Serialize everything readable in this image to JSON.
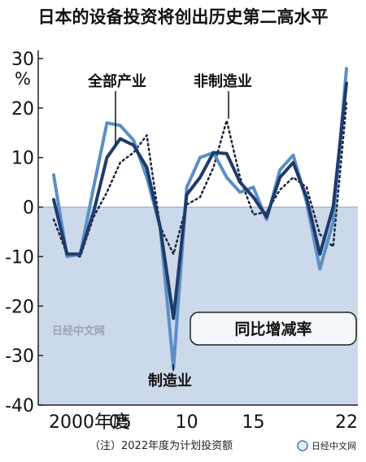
{
  "chart_data": {
    "type": "line",
    "title": "日本的设备投资将创出历史第二高水平",
    "unit_label": "%",
    "x": [
      2000,
      2001,
      2002,
      2003,
      2004,
      2005,
      2006,
      2007,
      2008,
      2009,
      2010,
      2011,
      2012,
      2013,
      2014,
      2015,
      2016,
      2017,
      2018,
      2019,
      2020,
      2021,
      2022
    ],
    "x_tick_labels": [
      "2000年度",
      "05",
      "10",
      "15",
      "22"
    ],
    "x_tick_values": [
      2000,
      2005,
      2010,
      2015,
      2022
    ],
    "y_tick_values": [
      30,
      20,
      10,
      0,
      -10,
      -20,
      -30,
      -40
    ],
    "y_tick_labels": [
      "30",
      "20",
      "10",
      "0",
      "-10",
      "-20",
      "-30",
      "-40"
    ],
    "ylim": [
      -40,
      30
    ],
    "xlim": [
      2000,
      2022
    ],
    "negative_region_shaded": true,
    "series": [
      {
        "name": "全部产业",
        "style": "solid-dark",
        "color": "#1f3a6b",
        "values": [
          1.5,
          -9.5,
          -9.5,
          -1,
          10,
          13.8,
          12.5,
          8,
          -4,
          -22.5,
          2.5,
          6,
          11,
          10.8,
          5,
          2,
          -2,
          6,
          9,
          2,
          -9.5,
          0,
          25
        ]
      },
      {
        "name": "制造业",
        "style": "solid-light",
        "color": "#5b8fc5",
        "values": [
          6.5,
          -10,
          -9.5,
          4,
          17,
          16.5,
          13.5,
          6,
          -4,
          -32.5,
          4,
          10,
          11,
          6,
          3,
          4,
          -2.5,
          7.5,
          10.5,
          1,
          -12.5,
          -3,
          28
        ]
      },
      {
        "name": "非制造业",
        "style": "dotted",
        "color": "#1a2540",
        "values": [
          -2.5,
          -9.5,
          -10,
          -2,
          3,
          9,
          11,
          14.5,
          -4,
          -9.5,
          0.5,
          2,
          8,
          17.5,
          6,
          -1.5,
          -1,
          3.5,
          6,
          4,
          -5.5,
          -8,
          21
        ]
      }
    ],
    "annotation_box": "同比增减率",
    "note": "（注）2022年度为计划投资额"
  },
  "watermarks": {
    "center": "日经中文网",
    "corner_brand": "日经中文网"
  },
  "colors": {
    "shade": "#cbd9ea",
    "axis": "#222222"
  }
}
